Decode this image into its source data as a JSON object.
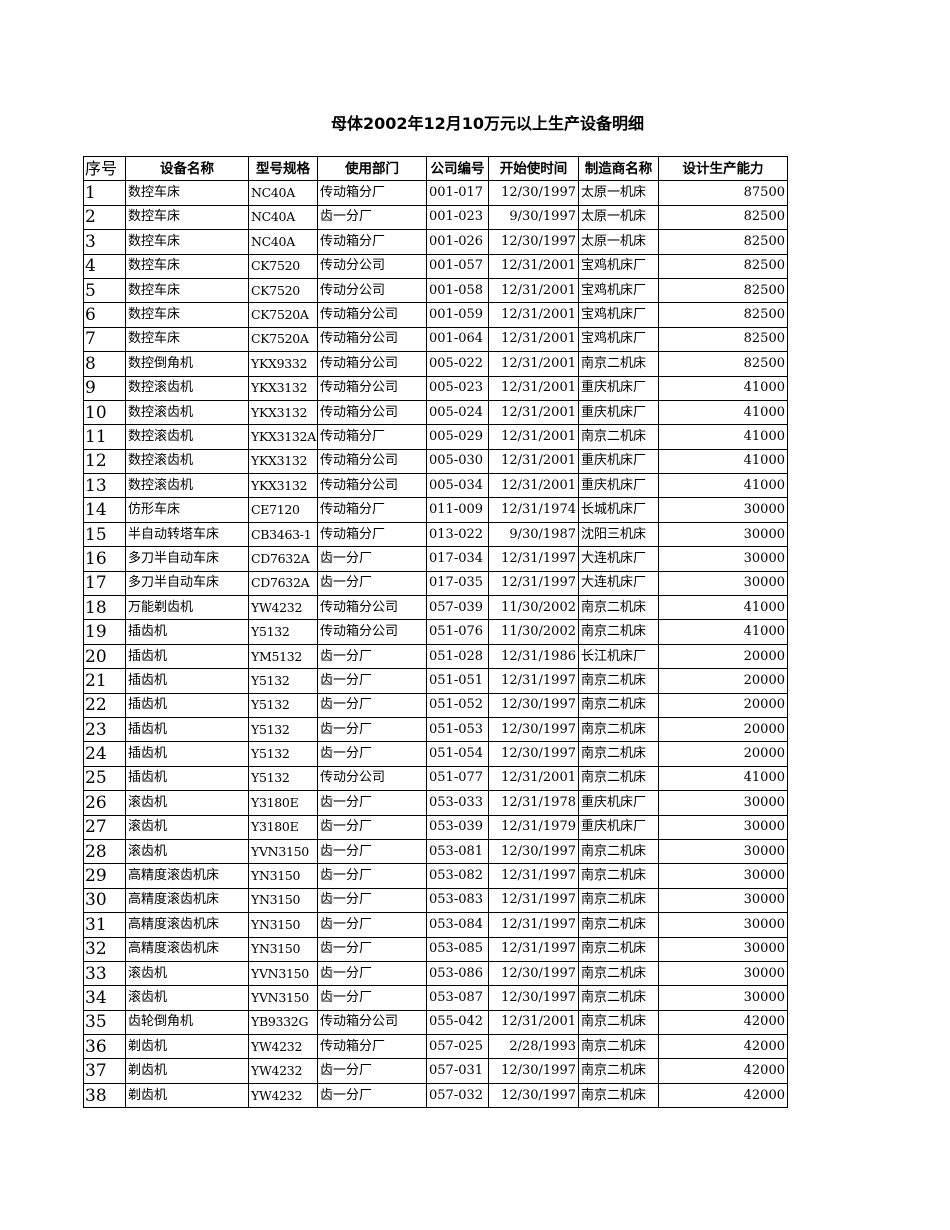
{
  "title": "母体2002年12月10万元以上生产设备明细",
  "columns": [
    "序号",
    "设备名称",
    "型号规格",
    "使用部门",
    "公司编号",
    "开始使时间",
    "制造商名称",
    "设计生产能力"
  ],
  "rows": [
    [
      "1",
      "数控车床",
      "NC40A",
      "传动箱分厂",
      "001-017",
      "12/30/1997",
      "太原一机床",
      "87500"
    ],
    [
      "2",
      "数控车床",
      "NC40A",
      "齿一分厂",
      "001-023",
      "9/30/1997",
      "太原一机床",
      "82500"
    ],
    [
      "3",
      "数控车床",
      "NC40A",
      "传动箱分厂",
      "001-026",
      "12/30/1997",
      "太原一机床",
      "82500"
    ],
    [
      "4",
      "数控车床",
      "CK7520",
      "传动分公司",
      "001-057",
      "12/31/2001",
      "宝鸡机床厂",
      "82500"
    ],
    [
      "5",
      "数控车床",
      "CK7520",
      "传动分公司",
      "001-058",
      "12/31/2001",
      "宝鸡机床厂",
      "82500"
    ],
    [
      "6",
      "数控车床",
      "CK7520A",
      "传动箱分公司",
      "001-059",
      "12/31/2001",
      "宝鸡机床厂",
      "82500"
    ],
    [
      "7",
      "数控车床",
      "CK7520A",
      "传动箱分公司",
      "001-064",
      "12/31/2001",
      "宝鸡机床厂",
      "82500"
    ],
    [
      "8",
      "数控倒角机",
      "YKX9332",
      "传动箱分公司",
      "005-022",
      "12/31/2001",
      "南京二机床",
      "82500"
    ],
    [
      "9",
      "数控滚齿机",
      "YKX3132",
      "传动箱分公司",
      "005-023",
      "12/31/2001",
      "重庆机床厂",
      "41000"
    ],
    [
      "10",
      "数控滚齿机",
      "YKX3132",
      "传动箱分公司",
      "005-024",
      "12/31/2001",
      "重庆机床厂",
      "41000"
    ],
    [
      "11",
      "数控滚齿机",
      "YKX3132A",
      "传动箱分厂",
      "005-029",
      "12/31/2001",
      "南京二机床",
      "41000"
    ],
    [
      "12",
      "数控滚齿机",
      "YKX3132",
      "传动箱分公司",
      "005-030",
      "12/31/2001",
      "重庆机床厂",
      "41000"
    ],
    [
      "13",
      "数控滚齿机",
      "YKX3132",
      "传动箱分公司",
      "005-034",
      "12/31/2001",
      "重庆机床厂",
      "41000"
    ],
    [
      "14",
      "仿形车床",
      "CE7120",
      "传动箱分厂",
      "011-009",
      "12/31/1974",
      "长城机床厂",
      "30000"
    ],
    [
      "15",
      "半自动转塔车床",
      "CB3463-1",
      "传动箱分厂",
      "013-022",
      "9/30/1987",
      "沈阳三机床",
      "30000"
    ],
    [
      "16",
      "多刀半自动车床",
      "CD7632A",
      "齿一分厂",
      "017-034",
      "12/31/1997",
      "大连机床厂",
      "30000"
    ],
    [
      "17",
      "多刀半自动车床",
      "CD7632A",
      "齿一分厂",
      "017-035",
      "12/31/1997",
      "大连机床厂",
      "30000"
    ],
    [
      "18",
      "万能剃齿机",
      "YW4232",
      "传动箱分公司",
      "057-039",
      "11/30/2002",
      "南京二机床",
      "41000"
    ],
    [
      "19",
      "插齿机",
      "Y5132",
      "传动箱分公司",
      "051-076",
      "11/30/2002",
      "南京二机床",
      "41000"
    ],
    [
      "20",
      "插齿机",
      "YM5132",
      "齿一分厂",
      "051-028",
      "12/31/1986",
      "长江机床厂",
      "20000"
    ],
    [
      "21",
      "插齿机",
      "Y5132",
      "齿一分厂",
      "051-051",
      "12/31/1997",
      "南京二机床",
      "20000"
    ],
    [
      "22",
      "插齿机",
      "Y5132",
      "齿一分厂",
      "051-052",
      "12/30/1997",
      "南京二机床",
      "20000"
    ],
    [
      "23",
      "插齿机",
      "Y5132",
      "齿一分厂",
      "051-053",
      "12/30/1997",
      "南京二机床",
      "20000"
    ],
    [
      "24",
      "插齿机",
      "Y5132",
      "齿一分厂",
      "051-054",
      "12/30/1997",
      "南京二机床",
      "20000"
    ],
    [
      "25",
      "插齿机",
      "Y5132",
      "传动分公司",
      "051-077",
      "12/31/2001",
      "南京二机床",
      "41000"
    ],
    [
      "26",
      "滚齿机",
      "Y3180E",
      "齿一分厂",
      "053-033",
      "12/31/1978",
      "重庆机床厂",
      "30000"
    ],
    [
      "27",
      "滚齿机",
      "Y3180E",
      "齿一分厂",
      "053-039",
      "12/31/1979",
      "重庆机床厂",
      "30000"
    ],
    [
      "28",
      "滚齿机",
      "YVN3150",
      "齿一分厂",
      "053-081",
      "12/30/1997",
      "南京二机床",
      "30000"
    ],
    [
      "29",
      "高精度滚齿机床",
      "YN3150",
      "齿一分厂",
      "053-082",
      "12/31/1997",
      "南京二机床",
      "30000"
    ],
    [
      "30",
      "高精度滚齿机床",
      "YN3150",
      "齿一分厂",
      "053-083",
      "12/31/1997",
      "南京二机床",
      "30000"
    ],
    [
      "31",
      "高精度滚齿机床",
      "YN3150",
      "齿一分厂",
      "053-084",
      "12/31/1997",
      "南京二机床",
      "30000"
    ],
    [
      "32",
      "高精度滚齿机床",
      "YN3150",
      "齿一分厂",
      "053-085",
      "12/31/1997",
      "南京二机床",
      "30000"
    ],
    [
      "33",
      "滚齿机",
      "YVN3150",
      "齿一分厂",
      "053-086",
      "12/30/1997",
      "南京二机床",
      "30000"
    ],
    [
      "34",
      "滚齿机",
      "YVN3150",
      "齿一分厂",
      "053-087",
      "12/30/1997",
      "南京二机床",
      "30000"
    ],
    [
      "35",
      "齿轮倒角机",
      "YB9332G",
      "传动箱分公司",
      "055-042",
      "12/31/2001",
      "南京二机床",
      "42000"
    ],
    [
      "36",
      "剃齿机",
      "YW4232",
      "传动箱分厂",
      "057-025",
      "2/28/1993",
      "南京二机床",
      "42000"
    ],
    [
      "37",
      "剃齿机",
      "YW4232",
      "齿一分厂",
      "057-031",
      "12/30/1997",
      "南京二机床",
      "42000"
    ],
    [
      "38",
      "剃齿机",
      "YW4232",
      "齿一分厂",
      "057-032",
      "12/30/1997",
      "南京二机床",
      "42000"
    ]
  ]
}
